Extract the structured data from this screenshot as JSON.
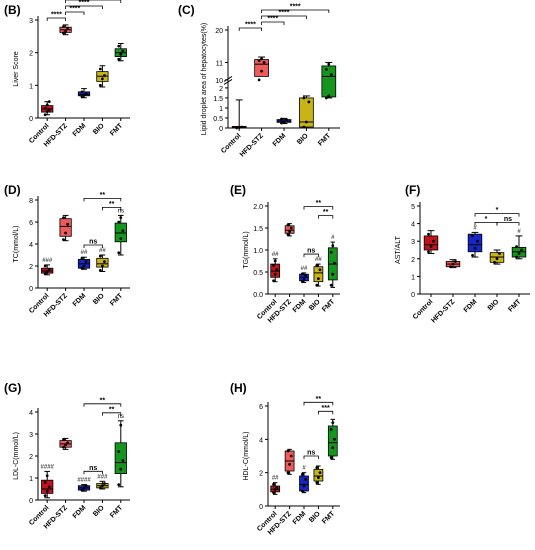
{
  "colors": {
    "Control": "#c0141c",
    "HFD-STZ": "#f05a5a",
    "FDM": "#1428c8",
    "BIO": "#c8b414",
    "FMT": "#14961e",
    "points": "#000000"
  },
  "chart_data": [
    {
      "type": "box",
      "panel_label": "(B)",
      "ylabel": "Liver Score",
      "categories": [
        "Control",
        "HFD-STZ",
        "FDM",
        "BIO",
        "FMT"
      ],
      "yticks": [
        "0",
        "1",
        "2",
        "3"
      ],
      "ylim": [
        0,
        3
      ],
      "boxes": [
        {
          "group": "Control",
          "min": 0.1,
          "q1": 0.18,
          "median": 0.28,
          "q3": 0.38,
          "max": 0.5,
          "points": [
            0.1,
            0.2,
            0.25,
            0.3,
            0.4,
            0.5
          ]
        },
        {
          "group": "HFD-STZ",
          "min": 2.55,
          "q1": 2.62,
          "median": 2.7,
          "q3": 2.78,
          "max": 2.85,
          "points": [
            2.6,
            2.65,
            2.75,
            2.8
          ]
        },
        {
          "group": "FDM",
          "min": 0.62,
          "q1": 0.68,
          "median": 0.72,
          "q3": 0.8,
          "max": 0.9,
          "points": [
            0.65,
            0.7,
            0.75,
            0.8
          ]
        },
        {
          "group": "BIO",
          "min": 0.95,
          "q1": 1.12,
          "median": 1.28,
          "q3": 1.42,
          "max": 1.6,
          "points": [
            1.0,
            1.2,
            1.3,
            1.5
          ]
        },
        {
          "group": "FMT",
          "min": 1.75,
          "q1": 1.88,
          "median": 2.0,
          "q3": 2.12,
          "max": 2.28,
          "points": [
            1.8,
            1.95,
            2.05,
            2.2
          ]
        }
      ],
      "brackets": [
        {
          "from": "Control",
          "to": "HFD-STZ",
          "label": "****"
        },
        {
          "from": "HFD-STZ",
          "to": "FDM",
          "label": "****"
        },
        {
          "from": "HFD-STZ",
          "to": "BIO",
          "label": "****"
        },
        {
          "from": "HFD-STZ",
          "to": "FMT",
          "label": "****"
        }
      ],
      "annotations": []
    },
    {
      "type": "box",
      "panel_label": "(C)",
      "ylabel": "Lipid droplet area of hepatocytes(%)",
      "categories": [
        "Control",
        "HFD-STZ",
        "FDM",
        "BIO",
        "FMT"
      ],
      "yticks": [
        "0",
        "0.5",
        "1",
        "1.5",
        "2",
        "10",
        "11",
        "20"
      ],
      "ylim": [
        0,
        20
      ],
      "axis_break": "between 2 and 10",
      "boxes": [
        {
          "group": "Control",
          "min": 0.0,
          "q1": 0.0,
          "median": 0.02,
          "q3": 0.08,
          "max": 1.4,
          "points": [
            0.0,
            0.02,
            0.05
          ]
        },
        {
          "group": "HFD-STZ",
          "min": 9.9,
          "q1": 10.2,
          "median": 10.9,
          "q3": 11.8,
          "max": 12.5,
          "points": [
            10.0,
            10.5,
            11.0,
            11.5,
            12.0
          ]
        },
        {
          "group": "FDM",
          "min": 0.22,
          "q1": 0.28,
          "median": 0.35,
          "q3": 0.42,
          "max": 0.48,
          "points": [
            0.25,
            0.3,
            0.4,
            0.45
          ]
        },
        {
          "group": "BIO",
          "min": 0.0,
          "q1": 0.05,
          "median": 0.3,
          "q3": 1.5,
          "max": 1.6,
          "points": [
            0.05,
            0.3,
            1.3,
            1.5
          ]
        },
        {
          "group": "FMT",
          "min": 1.5,
          "q1": 1.55,
          "median": 10.2,
          "q3": 10.8,
          "max": 11.0,
          "points": [
            1.5,
            1.6,
            10.3,
            10.6,
            10.9
          ]
        }
      ],
      "brackets": [
        {
          "from": "Control",
          "to": "HFD-STZ",
          "label": "****"
        },
        {
          "from": "HFD-STZ",
          "to": "FDM",
          "label": "****"
        },
        {
          "from": "HFD-STZ",
          "to": "BIO",
          "label": "****"
        },
        {
          "from": "HFD-STZ",
          "to": "FMT",
          "label": "****"
        }
      ],
      "annotations": []
    },
    {
      "type": "box",
      "panel_label": "(D)",
      "ylabel": "TC(mmol/L)",
      "categories": [
        "Control",
        "HFD-STZ",
        "FDM",
        "BIO",
        "FMT"
      ],
      "yticks": [
        "0",
        "2",
        "4",
        "6",
        "8"
      ],
      "ylim": [
        0,
        8
      ],
      "boxes": [
        {
          "group": "Control",
          "min": 1.2,
          "q1": 1.35,
          "median": 1.55,
          "q3": 1.8,
          "max": 2.1,
          "points": [
            1.3,
            1.5,
            1.7,
            2.0
          ]
        },
        {
          "group": "HFD-STZ",
          "min": 4.3,
          "q1": 4.7,
          "median": 5.6,
          "q3": 6.3,
          "max": 6.6,
          "points": [
            4.4,
            5.0,
            5.8,
            6.4
          ]
        },
        {
          "group": "FDM",
          "min": 1.7,
          "q1": 1.8,
          "median": 2.2,
          "q3": 2.6,
          "max": 2.8,
          "points": [
            1.8,
            2.0,
            2.4,
            2.7
          ]
        },
        {
          "group": "BIO",
          "min": 1.5,
          "q1": 1.9,
          "median": 2.2,
          "q3": 2.7,
          "max": 3.0,
          "points": [
            1.6,
            2.0,
            2.4,
            2.9
          ]
        },
        {
          "group": "FMT",
          "min": 3.0,
          "q1": 4.2,
          "median": 5.0,
          "q3": 5.9,
          "max": 6.6,
          "points": [
            3.2,
            4.5,
            5.2,
            6.0,
            6.4
          ]
        }
      ],
      "brackets": [
        {
          "from": "FDM",
          "to": "BIO",
          "label": "ns"
        },
        {
          "from": "BIO",
          "to": "FMT",
          "label": "**"
        },
        {
          "from": "FDM",
          "to": "FMT",
          "label": "**"
        }
      ],
      "annotations": [
        {
          "group": "Control",
          "label": "###"
        },
        {
          "group": "FDM",
          "label": "##"
        },
        {
          "group": "BIO",
          "label": "##"
        },
        {
          "group": "FMT",
          "label": "ns"
        }
      ]
    },
    {
      "type": "box",
      "panel_label": "(E)",
      "ylabel": "TG(mmol/L)",
      "categories": [
        "Control",
        "HFD-STZ",
        "FDM",
        "BIO",
        "FMT"
      ],
      "yticks": [
        "0.0",
        "0.5",
        "1.0",
        "1.5",
        "2.0"
      ],
      "ylim": [
        0,
        2
      ],
      "boxes": [
        {
          "group": "Control",
          "min": 0.28,
          "q1": 0.38,
          "median": 0.52,
          "q3": 0.68,
          "max": 0.8,
          "points": [
            0.3,
            0.45,
            0.55,
            0.65,
            0.75
          ]
        },
        {
          "group": "HFD-STZ",
          "min": 1.32,
          "q1": 1.38,
          "median": 1.45,
          "q3": 1.55,
          "max": 1.6,
          "points": [
            1.35,
            1.42,
            1.5,
            1.57
          ]
        },
        {
          "group": "FDM",
          "min": 0.26,
          "q1": 0.3,
          "median": 0.38,
          "q3": 0.45,
          "max": 0.48,
          "points": [
            0.28,
            0.33,
            0.42,
            0.46
          ]
        },
        {
          "group": "BIO",
          "min": 0.18,
          "q1": 0.28,
          "median": 0.48,
          "q3": 0.62,
          "max": 0.68,
          "points": [
            0.2,
            0.35,
            0.55,
            0.65
          ]
        },
        {
          "group": "FMT",
          "min": 0.15,
          "q1": 0.32,
          "median": 0.68,
          "q3": 1.05,
          "max": 1.18,
          "points": [
            0.2,
            0.45,
            0.7,
            0.95,
            1.1
          ]
        }
      ],
      "brackets": [
        {
          "from": "FDM",
          "to": "BIO",
          "label": "ns"
        },
        {
          "from": "BIO",
          "to": "FMT",
          "label": "**"
        },
        {
          "from": "FDM",
          "to": "FMT",
          "label": "**"
        }
      ],
      "annotations": [
        {
          "group": "Control",
          "label": "##"
        },
        {
          "group": "FDM",
          "label": "##"
        },
        {
          "group": "BIO",
          "label": "##"
        },
        {
          "group": "FMT",
          "label": "#"
        }
      ]
    },
    {
      "type": "box",
      "panel_label": "(F)",
      "ylabel": "AST/ALT",
      "categories": [
        "Control",
        "HFD-STZ",
        "FDM",
        "BIO",
        "FMT"
      ],
      "yticks": [
        "0",
        "1",
        "2",
        "3",
        "4",
        "5"
      ],
      "ylim": [
        0,
        5
      ],
      "boxes": [
        {
          "group": "Control",
          "min": 2.3,
          "q1": 2.5,
          "median": 2.8,
          "q3": 3.3,
          "max": 3.6,
          "points": [
            2.4,
            2.7,
            3.0,
            3.4
          ]
        },
        {
          "group": "HFD-STZ",
          "min": 1.5,
          "q1": 1.55,
          "median": 1.7,
          "q3": 1.85,
          "max": 1.95,
          "points": [
            1.55,
            1.7,
            1.85
          ]
        },
        {
          "group": "FDM",
          "min": 2.1,
          "q1": 2.4,
          "median": 2.8,
          "q3": 3.4,
          "max": 3.5,
          "points": [
            2.2,
            2.6,
            3.0,
            3.3
          ]
        },
        {
          "group": "BIO",
          "min": 1.7,
          "q1": 1.8,
          "median": 2.1,
          "q3": 2.35,
          "max": 2.5,
          "points": [
            1.8,
            2.0,
            2.3
          ]
        },
        {
          "group": "FMT",
          "min": 2.0,
          "q1": 2.1,
          "median": 2.4,
          "q3": 2.65,
          "max": 3.3,
          "points": [
            2.1,
            2.3,
            2.5,
            2.7
          ]
        }
      ],
      "brackets": [
        {
          "from": "FDM",
          "to": "BIO",
          "label": "*"
        },
        {
          "from": "BIO",
          "to": "FMT",
          "label": "ns"
        },
        {
          "from": "FDM",
          "to": "FMT",
          "label": "*"
        }
      ],
      "annotations": [
        {
          "group": "FDM",
          "label": "#"
        },
        {
          "group": "FMT",
          "label": "#"
        }
      ]
    },
    {
      "type": "box",
      "panel_label": "(G)",
      "ylabel": "LDL-C(mmol/L)",
      "categories": [
        "Control",
        "HFD-STZ",
        "FDM",
        "BIO",
        "FMT"
      ],
      "yticks": [
        "0",
        "1",
        "2",
        "3",
        "4"
      ],
      "ylim": [
        0,
        4
      ],
      "boxes": [
        {
          "group": "Control",
          "min": 0.1,
          "q1": 0.3,
          "median": 0.5,
          "q3": 0.9,
          "max": 1.3,
          "points": [
            0.2,
            0.4,
            0.6,
            0.8,
            1.1
          ]
        },
        {
          "group": "HFD-STZ",
          "min": 2.3,
          "q1": 2.4,
          "median": 2.55,
          "q3": 2.7,
          "max": 2.8,
          "points": [
            2.4,
            2.5,
            2.6,
            2.75
          ]
        },
        {
          "group": "FDM",
          "min": 0.4,
          "q1": 0.45,
          "median": 0.55,
          "q3": 0.65,
          "max": 0.7,
          "points": [
            0.45,
            0.55,
            0.65
          ]
        },
        {
          "group": "BIO",
          "min": 0.5,
          "q1": 0.55,
          "median": 0.65,
          "q3": 0.75,
          "max": 0.85,
          "points": [
            0.55,
            0.65,
            0.75
          ]
        },
        {
          "group": "FMT",
          "min": 0.6,
          "q1": 1.2,
          "median": 1.7,
          "q3": 2.6,
          "max": 3.6,
          "points": [
            0.7,
            1.4,
            1.8,
            2.2,
            3.4
          ]
        }
      ],
      "brackets": [
        {
          "from": "FDM",
          "to": "BIO",
          "label": "ns"
        },
        {
          "from": "BIO",
          "to": "FMT",
          "label": "**"
        },
        {
          "from": "FDM",
          "to": "FMT",
          "label": "**"
        }
      ],
      "annotations": [
        {
          "group": "Control",
          "label": "####"
        },
        {
          "group": "FDM",
          "label": "####"
        },
        {
          "group": "BIO",
          "label": "###"
        },
        {
          "group": "FMT",
          "label": "ns"
        }
      ]
    },
    {
      "type": "box",
      "panel_label": "(H)",
      "ylabel": "HDL-C(mmol/L)",
      "categories": [
        "Control",
        "HFD-STZ",
        "FDM",
        "BIO",
        "FMT"
      ],
      "yticks": [
        "0",
        "2",
        "4",
        "6"
      ],
      "ylim": [
        0,
        6
      ],
      "boxes": [
        {
          "group": "Control",
          "min": 0.7,
          "q1": 0.85,
          "median": 1.0,
          "q3": 1.2,
          "max": 1.4,
          "points": [
            0.8,
            1.0,
            1.1,
            1.3
          ]
        },
        {
          "group": "HFD-STZ",
          "min": 1.9,
          "q1": 2.1,
          "median": 2.7,
          "q3": 3.3,
          "max": 3.4,
          "points": [
            2.0,
            2.5,
            3.0,
            3.3
          ]
        },
        {
          "group": "FDM",
          "min": 0.8,
          "q1": 0.9,
          "median": 1.3,
          "q3": 1.8,
          "max": 2.0,
          "points": [
            0.9,
            1.2,
            1.6,
            1.9
          ]
        },
        {
          "group": "BIO",
          "min": 1.3,
          "q1": 1.5,
          "median": 1.8,
          "q3": 2.2,
          "max": 2.4,
          "points": [
            1.4,
            1.7,
            2.0,
            2.3
          ]
        },
        {
          "group": "FMT",
          "min": 2.8,
          "q1": 3.0,
          "median": 3.8,
          "q3": 4.8,
          "max": 5.2,
          "points": [
            2.9,
            3.5,
            4.0,
            4.6,
            5.0
          ]
        }
      ],
      "brackets": [
        {
          "from": "FDM",
          "to": "BIO",
          "label": "ns"
        },
        {
          "from": "BIO",
          "to": "FMT",
          "label": "***"
        },
        {
          "from": "FDM",
          "to": "FMT",
          "label": "**"
        }
      ],
      "annotations": [
        {
          "group": "Control",
          "label": "##"
        },
        {
          "group": "FDM",
          "label": "#"
        }
      ]
    }
  ]
}
